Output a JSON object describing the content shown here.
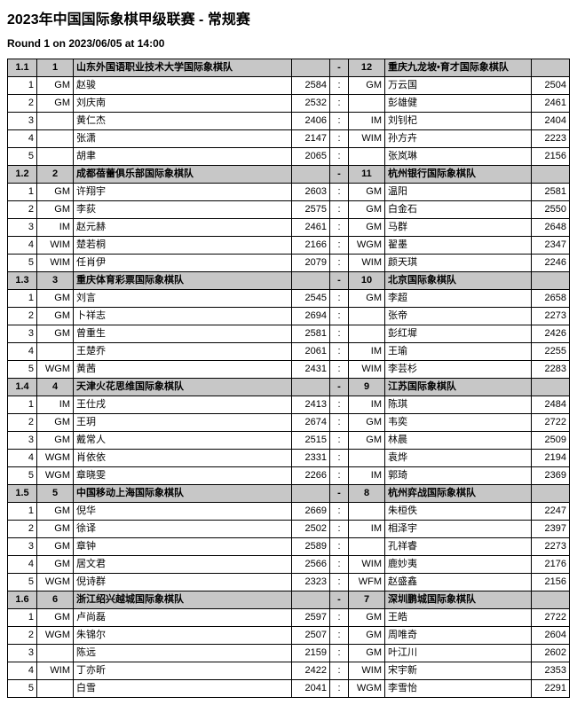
{
  "title": "2023年中国国际象棋甲级联赛 - 常规赛",
  "round_info": "Round 1 on 2023/06/05 at 14:00",
  "colors": {
    "header_bg": "#c7c7c7",
    "border": "#000000",
    "bg": "#ffffff"
  },
  "matches": [
    {
      "match_no": "1.1",
      "team_a_no": "1",
      "team_a": "山东外国语职业技术大学国际象棋队",
      "dash": "-",
      "team_b_no": "12",
      "team_b": "重庆九龙坡•育才国际象棋队",
      "boards": [
        {
          "b": "1",
          "ta": "GM",
          "na": "赵骏",
          "ra": "2584",
          "res": ":",
          "tb": "GM",
          "nb": "万云国",
          "rb": "2504"
        },
        {
          "b": "2",
          "ta": "GM",
          "na": "刘庆南",
          "ra": "2532",
          "res": ":",
          "tb": "",
          "nb": "彭雄健",
          "rb": "2461"
        },
        {
          "b": "3",
          "ta": "",
          "na": "黄仁杰",
          "ra": "2406",
          "res": ":",
          "tb": "IM",
          "nb": "刘钊杞",
          "rb": "2404"
        },
        {
          "b": "4",
          "ta": "",
          "na": "张潇",
          "ra": "2147",
          "res": ":",
          "tb": "WIM",
          "nb": "孙方卉",
          "rb": "2223"
        },
        {
          "b": "5",
          "ta": "",
          "na": "胡聿",
          "ra": "2065",
          "res": ":",
          "tb": "",
          "nb": "张岚琳",
          "rb": "2156"
        }
      ]
    },
    {
      "match_no": "1.2",
      "team_a_no": "2",
      "team_a": "成都蓓蕾俱乐部国际象棋队",
      "dash": "-",
      "team_b_no": "11",
      "team_b": "杭州银行国际象棋队",
      "boards": [
        {
          "b": "1",
          "ta": "GM",
          "na": "许翔宇",
          "ra": "2603",
          "res": ":",
          "tb": "GM",
          "nb": "温阳",
          "rb": "2581"
        },
        {
          "b": "2",
          "ta": "GM",
          "na": "李荻",
          "ra": "2575",
          "res": ":",
          "tb": "GM",
          "nb": "白金石",
          "rb": "2550"
        },
        {
          "b": "3",
          "ta": "IM",
          "na": "赵元赫",
          "ra": "2461",
          "res": ":",
          "tb": "GM",
          "nb": "马群",
          "rb": "2648"
        },
        {
          "b": "4",
          "ta": "WIM",
          "na": "楚若桐",
          "ra": "2166",
          "res": ":",
          "tb": "WGM",
          "nb": "翟墨",
          "rb": "2347"
        },
        {
          "b": "5",
          "ta": "WIM",
          "na": "任肖伊",
          "ra": "2079",
          "res": ":",
          "tb": "WIM",
          "nb": "颜天琪",
          "rb": "2246"
        }
      ]
    },
    {
      "match_no": "1.3",
      "team_a_no": "3",
      "team_a": "重庆体育彩票国际象棋队",
      "dash": "-",
      "team_b_no": "10",
      "team_b": "北京国际象棋队",
      "boards": [
        {
          "b": "1",
          "ta": "GM",
          "na": "刘言",
          "ra": "2545",
          "res": ":",
          "tb": "GM",
          "nb": "李超",
          "rb": "2658"
        },
        {
          "b": "2",
          "ta": "GM",
          "na": "卜祥志",
          "ra": "2694",
          "res": ":",
          "tb": "",
          "nb": "张帝",
          "rb": "2273"
        },
        {
          "b": "3",
          "ta": "GM",
          "na": "曾重生",
          "ra": "2581",
          "res": ":",
          "tb": "",
          "nb": "彭红墀",
          "rb": "2426"
        },
        {
          "b": "4",
          "ta": "",
          "na": "王楚乔",
          "ra": "2061",
          "res": ":",
          "tb": "IM",
          "nb": "王瑜",
          "rb": "2255"
        },
        {
          "b": "5",
          "ta": "WGM",
          "na": "黄茜",
          "ra": "2431",
          "res": ":",
          "tb": "WIM",
          "nb": "李芸杉",
          "rb": "2283"
        }
      ]
    },
    {
      "match_no": "1.4",
      "team_a_no": "4",
      "team_a": "天津火花思维国际象棋队",
      "dash": "-",
      "team_b_no": "9",
      "team_b": "江苏国际象棋队",
      "boards": [
        {
          "b": "1",
          "ta": "IM",
          "na": "王仕戌",
          "ra": "2413",
          "res": ":",
          "tb": "IM",
          "nb": "陈琪",
          "rb": "2484"
        },
        {
          "b": "2",
          "ta": "GM",
          "na": "王玥",
          "ra": "2674",
          "res": ":",
          "tb": "GM",
          "nb": "韦奕",
          "rb": "2722"
        },
        {
          "b": "3",
          "ta": "GM",
          "na": "戴常人",
          "ra": "2515",
          "res": ":",
          "tb": "GM",
          "nb": "林晨",
          "rb": "2509"
        },
        {
          "b": "4",
          "ta": "WGM",
          "na": "肖依依",
          "ra": "2331",
          "res": ":",
          "tb": "",
          "nb": "袁烨",
          "rb": "2194"
        },
        {
          "b": "5",
          "ta": "WGM",
          "na": "章晓雯",
          "ra": "2266",
          "res": ":",
          "tb": "IM",
          "nb": "郭琦",
          "rb": "2369"
        }
      ]
    },
    {
      "match_no": "1.5",
      "team_a_no": "5",
      "team_a": "中国移动上海国际象棋队",
      "dash": "-",
      "team_b_no": "8",
      "team_b": "杭州弈战国际象棋队",
      "boards": [
        {
          "b": "1",
          "ta": "GM",
          "na": "倪华",
          "ra": "2669",
          "res": ":",
          "tb": "",
          "nb": "朱桓佚",
          "rb": "2247"
        },
        {
          "b": "2",
          "ta": "GM",
          "na": "徐译",
          "ra": "2502",
          "res": ":",
          "tb": "IM",
          "nb": "相泽宇",
          "rb": "2397"
        },
        {
          "b": "3",
          "ta": "GM",
          "na": "章钟",
          "ra": "2589",
          "res": ":",
          "tb": "",
          "nb": "孔祥睿",
          "rb": "2273"
        },
        {
          "b": "4",
          "ta": "GM",
          "na": "居文君",
          "ra": "2566",
          "res": ":",
          "tb": "WIM",
          "nb": "鹿妙夷",
          "rb": "2176"
        },
        {
          "b": "5",
          "ta": "WGM",
          "na": "倪诗群",
          "ra": "2323",
          "res": ":",
          "tb": "WFM",
          "nb": "赵盛鑫",
          "rb": "2156"
        }
      ]
    },
    {
      "match_no": "1.6",
      "team_a_no": "6",
      "team_a": "浙江绍兴越城国际象棋队",
      "dash": "-",
      "team_b_no": "7",
      "team_b": "深圳鹏城国际象棋队",
      "boards": [
        {
          "b": "1",
          "ta": "GM",
          "na": "卢尚磊",
          "ra": "2597",
          "res": ":",
          "tb": "GM",
          "nb": "王皓",
          "rb": "2722"
        },
        {
          "b": "2",
          "ta": "WGM",
          "na": "朱锦尔",
          "ra": "2507",
          "res": ":",
          "tb": "GM",
          "nb": "周唯奇",
          "rb": "2604"
        },
        {
          "b": "3",
          "ta": "",
          "na": "陈远",
          "ra": "2159",
          "res": ":",
          "tb": "GM",
          "nb": "叶江川",
          "rb": "2602"
        },
        {
          "b": "4",
          "ta": "WIM",
          "na": "丁亦昕",
          "ra": "2422",
          "res": ":",
          "tb": "WIM",
          "nb": "宋宇新",
          "rb": "2353"
        },
        {
          "b": "5",
          "ta": "",
          "na": "白雪",
          "ra": "2041",
          "res": ":",
          "tb": "WGM",
          "nb": "李雪怡",
          "rb": "2291"
        }
      ]
    }
  ]
}
